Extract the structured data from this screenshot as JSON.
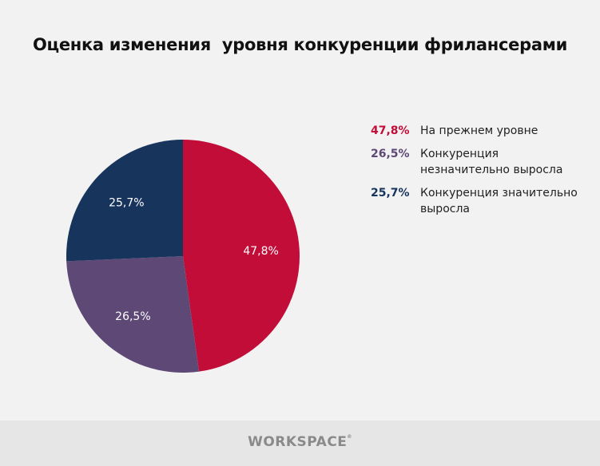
{
  "title": "Оценка изменения  уровня конкуренции фрилансерами",
  "chart_data": {
    "type": "pie",
    "title": "Оценка изменения  уровня конкуренции фрилансерами",
    "start": "top, clockwise",
    "legend_position": "right",
    "slices": [
      {
        "label": "На прежнем уровне",
        "value": 47.8,
        "display": "47,8%",
        "color": "#c30d39"
      },
      {
        "label": "Конкуренция незначительно выросла",
        "value": 26.5,
        "display": "26,5%",
        "color": "#5e4876"
      },
      {
        "label": "Конкуренция значительно выросла",
        "value": 25.7,
        "display": "25,7%",
        "color": "#16345c"
      }
    ]
  },
  "footer": {
    "logo": "WORKSPACE",
    "logo_mark": "®"
  }
}
